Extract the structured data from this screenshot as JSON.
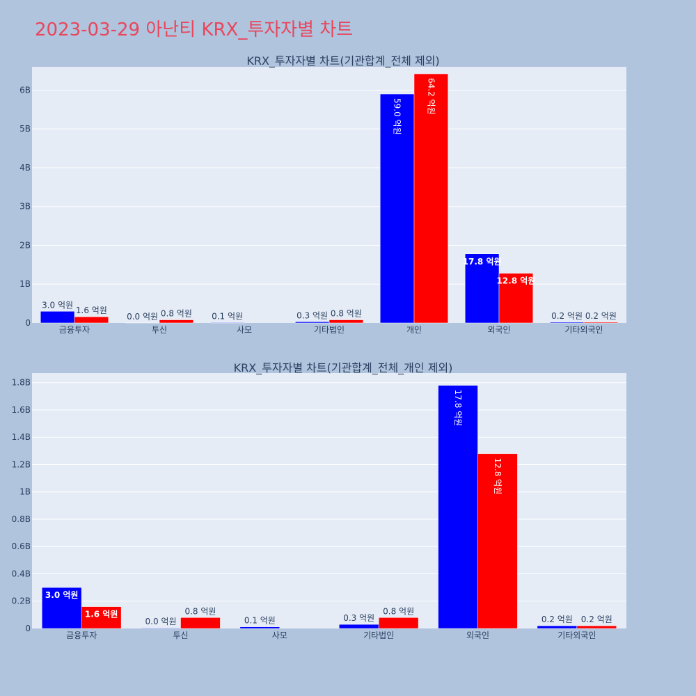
{
  "page_title": "2023-03-29 아난티 KRX_투자자별 차트",
  "colors": {
    "page_bg": "#b0c4de",
    "plot_bg": "#e5ecf6",
    "grid": "#ffffff",
    "series_a": "#0000ff",
    "series_b": "#ff0000",
    "title": "#e8465c",
    "text": "#2a3f5f"
  },
  "chart_data": [
    {
      "type": "bar",
      "title": "KRX_투자자별 차트(기관합계_전체 제외)",
      "categories": [
        "금융투자",
        "투신",
        "사모",
        "기타법인",
        "개인",
        "외국인",
        "기타외국인"
      ],
      "series": [
        {
          "color": "#0000ff",
          "values": [
            0.3,
            0.004,
            0.012,
            0.03,
            5.9,
            1.78,
            0.02
          ],
          "labels": [
            "3.0 억원",
            "0.0 억원",
            "0.1 억원",
            "0.3 억원",
            "59.0 억원",
            "17.8 억원",
            "0.2 억원"
          ]
        },
        {
          "color": "#ff0000",
          "values": [
            0.16,
            0.08,
            0,
            0.08,
            6.42,
            1.28,
            0.02
          ],
          "labels": [
            "1.6 억원",
            "0.8 억원",
            "",
            "0.8 억원",
            "64.2 억원",
            "12.8 억원",
            "0.2 억원"
          ]
        }
      ],
      "ylim": [
        0,
        6.6
      ],
      "yticks": [
        0,
        1,
        2,
        3,
        4,
        5,
        6
      ],
      "ytick_labels": [
        "0",
        "1B",
        "2B",
        "3B",
        "4B",
        "5B",
        "6B"
      ],
      "grid": true
    },
    {
      "type": "bar",
      "title": "KRX_투자자별 차트(기관합계_전체_개인 제외)",
      "categories": [
        "금융투자",
        "투신",
        "사모",
        "기타법인",
        "외국인",
        "기타외국인"
      ],
      "series": [
        {
          "color": "#0000ff",
          "values": [
            0.3,
            0.004,
            0.012,
            0.03,
            1.78,
            0.02
          ],
          "labels": [
            "3.0 억원",
            "0.0 억원",
            "0.1 억원",
            "0.3 억원",
            "17.8 억원",
            "0.2 억원"
          ]
        },
        {
          "color": "#ff0000",
          "values": [
            0.16,
            0.08,
            0,
            0.08,
            1.28,
            0.02
          ],
          "labels": [
            "1.6 억원",
            "0.8 억원",
            "",
            "0.8 억원",
            "12.8 억원",
            "0.2 억원"
          ]
        }
      ],
      "ylim": [
        0,
        1.87
      ],
      "yticks": [
        0,
        0.2,
        0.4,
        0.6,
        0.8,
        1.0,
        1.2,
        1.4,
        1.6,
        1.8
      ],
      "ytick_labels": [
        "0",
        "0.2B",
        "0.4B",
        "0.6B",
        "0.8B",
        "1B",
        "1.2B",
        "1.4B",
        "1.6B",
        "1.8B"
      ],
      "grid": true
    }
  ]
}
